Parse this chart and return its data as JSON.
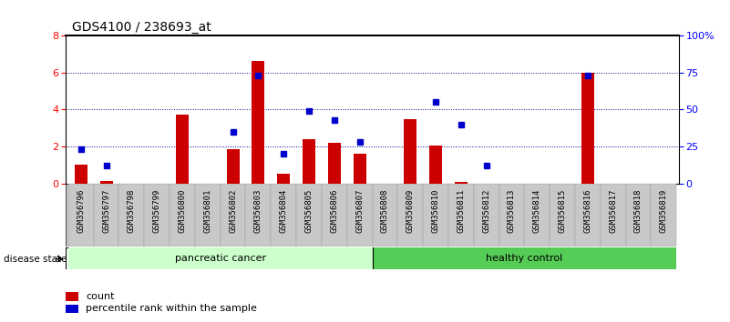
{
  "title": "GDS4100 / 238693_at",
  "samples": [
    "GSM356796",
    "GSM356797",
    "GSM356798",
    "GSM356799",
    "GSM356800",
    "GSM356801",
    "GSM356802",
    "GSM356803",
    "GSM356804",
    "GSM356805",
    "GSM356806",
    "GSM356807",
    "GSM356808",
    "GSM356809",
    "GSM356810",
    "GSM356811",
    "GSM356812",
    "GSM356813",
    "GSM356814",
    "GSM356815",
    "GSM356816",
    "GSM356817",
    "GSM356818",
    "GSM356819"
  ],
  "count_values": [
    1.0,
    0.15,
    0.0,
    0.0,
    3.7,
    0.0,
    1.85,
    6.6,
    0.55,
    2.4,
    2.2,
    1.6,
    0.0,
    3.5,
    2.05,
    0.1,
    0.0,
    0.0,
    0.0,
    0.0,
    6.0,
    0.0,
    0.0,
    0.0
  ],
  "percentile_values": [
    23,
    12,
    0,
    0,
    0,
    0,
    35,
    73,
    20,
    49,
    43,
    28,
    0,
    0,
    55,
    40,
    12,
    0,
    0,
    0,
    73,
    0,
    0,
    0
  ],
  "pancreatic_cancer_indices": [
    0,
    1,
    2,
    3,
    4,
    5,
    6,
    7,
    8,
    9,
    10,
    11
  ],
  "healthy_control_indices": [
    12,
    13,
    14,
    15,
    16,
    17,
    18,
    19,
    20,
    21,
    22,
    23
  ],
  "bar_color": "#cc0000",
  "dot_color": "#0000cc",
  "pancreatic_bg": "#ccffcc",
  "healthy_bg": "#55cc55",
  "label_bg": "#c8c8c8",
  "ylim_left": [
    0,
    8
  ],
  "ylim_right": [
    0,
    100
  ],
  "yticks_left": [
    0,
    2,
    4,
    6,
    8
  ],
  "yticks_right": [
    0,
    25,
    50,
    75,
    100
  ],
  "grid_values": [
    2,
    4,
    6
  ],
  "plot_bg": "#ffffff"
}
